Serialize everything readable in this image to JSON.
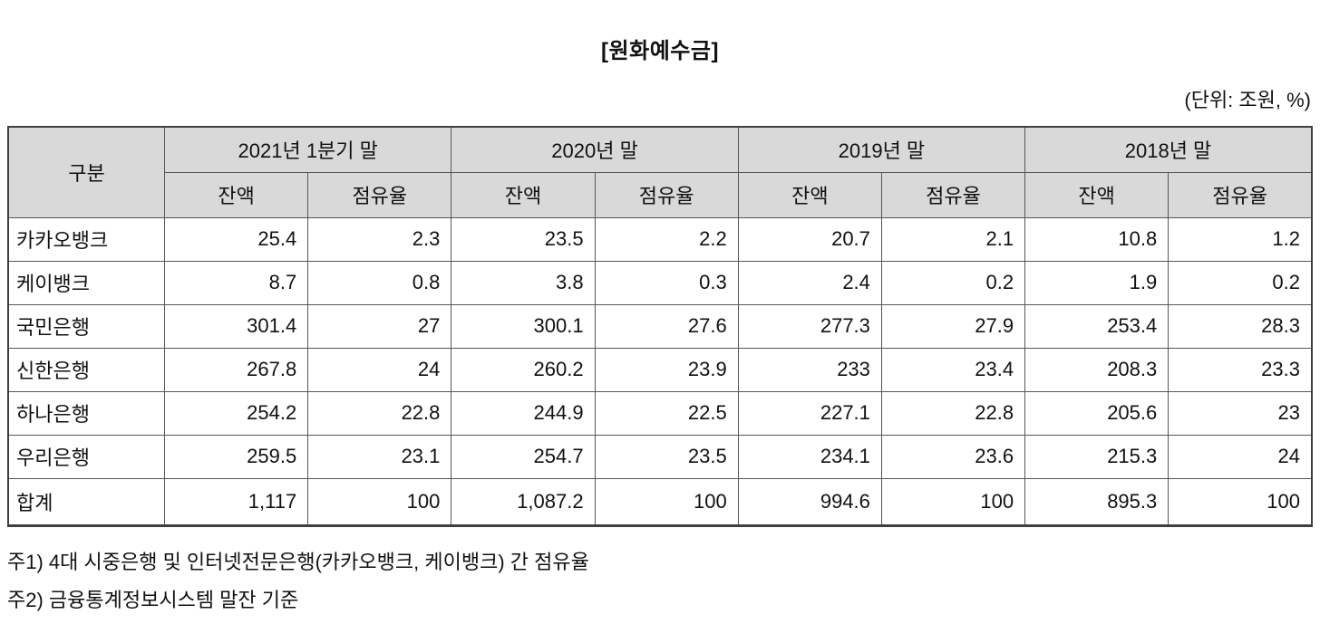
{
  "title": "[원화예수금]",
  "unit_note": "(단위: 조원, %)",
  "table": {
    "group_header": "구분",
    "period_headers": [
      "2021년 1분기 말",
      "2020년 말",
      "2019년 말",
      "2018년 말"
    ],
    "sub_headers": {
      "balance": "잔액",
      "share": "점유율"
    },
    "rows": [
      {
        "name": "카카오뱅크",
        "values": [
          "25.4",
          "2.3",
          "23.5",
          "2.2",
          "20.7",
          "2.1",
          "10.8",
          "1.2"
        ]
      },
      {
        "name": "케이뱅크",
        "values": [
          "8.7",
          "0.8",
          "3.8",
          "0.3",
          "2.4",
          "0.2",
          "1.9",
          "0.2"
        ]
      },
      {
        "name": "국민은행",
        "values": [
          "301.4",
          "27",
          "300.1",
          "27.6",
          "277.3",
          "27.9",
          "253.4",
          "28.3"
        ]
      },
      {
        "name": "신한은행",
        "values": [
          "267.8",
          "24",
          "260.2",
          "23.9",
          "233",
          "23.4",
          "208.3",
          "23.3"
        ]
      },
      {
        "name": "하나은행",
        "values": [
          "254.2",
          "22.8",
          "244.9",
          "22.5",
          "227.1",
          "22.8",
          "205.6",
          "23"
        ]
      },
      {
        "name": "우리은행",
        "values": [
          "259.5",
          "23.1",
          "254.7",
          "23.5",
          "234.1",
          "23.6",
          "215.3",
          "24"
        ]
      },
      {
        "name": "합계",
        "values": [
          "1,117",
          "100",
          "1,087.2",
          "100",
          "994.6",
          "100",
          "895.3",
          "100"
        ]
      }
    ]
  },
  "chart_data": {
    "type": "table",
    "title": "[원화예수금]",
    "unit": "(단위: 조원, %)",
    "columns": [
      "구분",
      "2021년 1분기 말 잔액",
      "2021년 1분기 말 점유율",
      "2020년 말 잔액",
      "2020년 말 점유율",
      "2019년 말 잔액",
      "2019년 말 점유율",
      "2018년 말 잔액",
      "2018년 말 점유율"
    ],
    "rows": [
      [
        "카카오뱅크",
        25.4,
        2.3,
        23.5,
        2.2,
        20.7,
        2.1,
        10.8,
        1.2
      ],
      [
        "케이뱅크",
        8.7,
        0.8,
        3.8,
        0.3,
        2.4,
        0.2,
        1.9,
        0.2
      ],
      [
        "국민은행",
        301.4,
        27,
        300.1,
        27.6,
        277.3,
        27.9,
        253.4,
        28.3
      ],
      [
        "신한은행",
        267.8,
        24,
        260.2,
        23.9,
        233,
        23.4,
        208.3,
        23.3
      ],
      [
        "하나은행",
        254.2,
        22.8,
        244.9,
        22.5,
        227.1,
        22.8,
        205.6,
        23
      ],
      [
        "우리은행",
        259.5,
        23.1,
        254.7,
        23.5,
        234.1,
        23.6,
        215.3,
        24
      ],
      [
        "합계",
        1117,
        100,
        1087.2,
        100,
        994.6,
        100,
        895.3,
        100
      ]
    ]
  },
  "footnotes": [
    "주1) 4대 시중은행 및 인터넷전문은행(카카오뱅크, 케이뱅크) 간 점유율",
    "주2) 금융통계정보시스템 말잔 기준"
  ],
  "colors": {
    "header_bg": "#d9d9d9",
    "border": "#565656",
    "outer_border": "#3f3f3f",
    "text": "#111111"
  }
}
